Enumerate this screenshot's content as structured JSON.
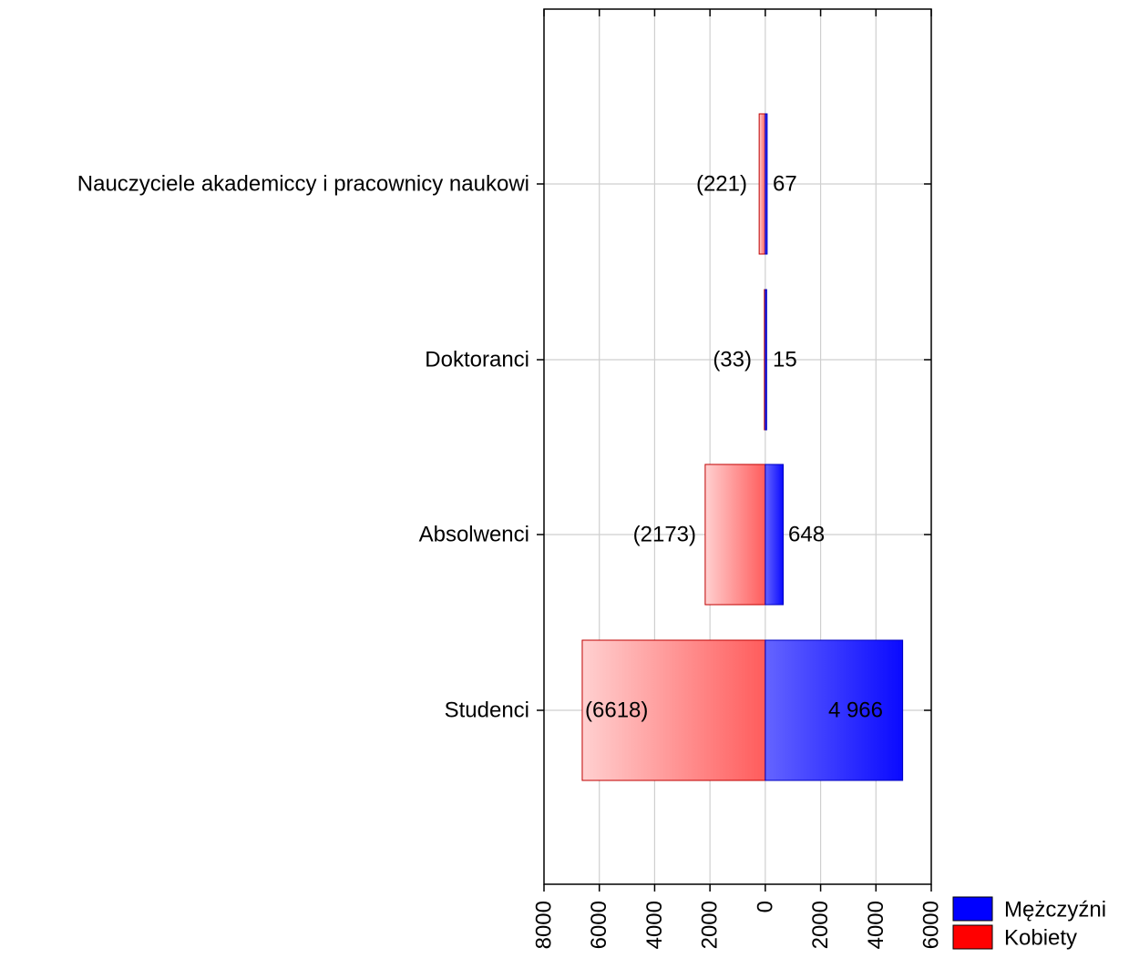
{
  "chart_data": {
    "type": "bar",
    "orientation": "horizontal",
    "layout": "diverging",
    "title": "",
    "xlabel": "",
    "ylabel": "",
    "categories": [
      "Nauczyciele akademiccy i pracownicy naukowi",
      "Doktoranci",
      "Absolwenci",
      "Studenci"
    ],
    "series": [
      {
        "name": "Mężczyźni",
        "color": "#0000ff",
        "values": [
          67,
          15,
          648,
          4966
        ],
        "labels": [
          "67",
          "15",
          "648",
          "4 966"
        ]
      },
      {
        "name": "Kobiety",
        "color": "#ff0000",
        "values": [
          221,
          33,
          2173,
          6618
        ],
        "labels": [
          "(221)",
          "(33)",
          "(2173)",
          "(6618)"
        ]
      }
    ],
    "xlim": [
      -8000,
      6000
    ],
    "x_tick_values": [
      -8000,
      -6000,
      -4000,
      -2000,
      0,
      2000,
      4000,
      6000
    ],
    "x_tick_labels": [
      "8000",
      "6000",
      "4000",
      "2000",
      "0",
      "2000",
      "4000",
      "6000"
    ],
    "grid": true,
    "legend_position": "bottom-right"
  }
}
